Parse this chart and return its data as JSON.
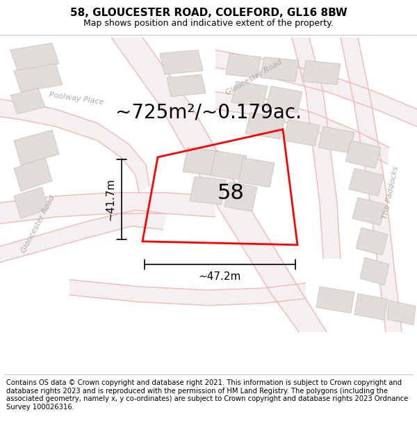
{
  "title": "58, GLOUCESTER ROAD, COLEFORD, GL16 8BW",
  "subtitle": "Map shows position and indicative extent of the property.",
  "area_text": "~725m²/~0.179ac.",
  "property_number": "58",
  "dim_width": "~47.2m",
  "dim_height": "~41.7m",
  "footer": "Contains OS data © Crown copyright and database right 2021. This information is subject to Crown copyright and database rights 2023 and is reproduced with the permission of HM Land Registry. The polygons (including the associated geometry, namely x, y co-ordinates) are subject to Crown copyright and database rights 2023 Ordnance Survey 100026316.",
  "bg_color": "#f7f6f4",
  "road_line_color": "#f0b8b8",
  "road_fill_color": "#f7f0f0",
  "building_color": "#e0dcd8",
  "building_edge": "#c8c4c0",
  "plot_color": "#ff0000",
  "title_fontsize": 11,
  "subtitle_fontsize": 9,
  "area_fontsize": 20,
  "label_fontsize": 22,
  "dim_fontsize": 11,
  "footer_fontsize": 7.2,
  "road_label_color": "#aaaaaa",
  "road_label_size": 8
}
